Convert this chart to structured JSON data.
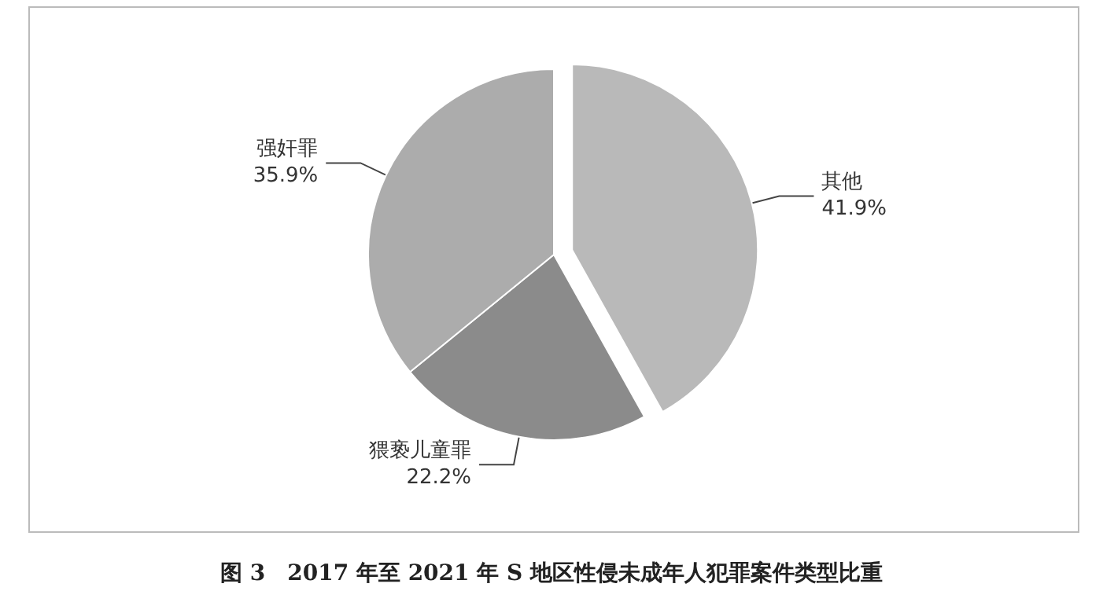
{
  "chart_data": {
    "type": "pie",
    "title": "图 3　2017 年至 2021 年 S 地区性侵未成年人犯罪案件类型比重",
    "categories": [
      "其他",
      "猥亵儿童罪",
      "强奸罪"
    ],
    "values": [
      41.9,
      22.2,
      35.9
    ],
    "value_labels": [
      "41.9%",
      "22.2%",
      "35.9%"
    ],
    "colors": [
      "#b9b9b9",
      "#8b8b8b",
      "#acacac"
    ],
    "legend": false
  }
}
